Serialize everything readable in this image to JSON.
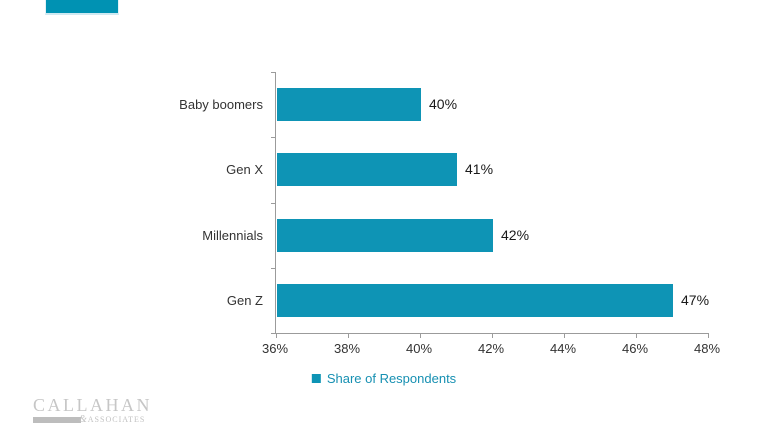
{
  "header": {
    "accent_color": "#0092b3"
  },
  "chart_data": {
    "type": "bar",
    "orientation": "horizontal",
    "title": "",
    "categories": [
      "Baby boomers",
      "Gen X",
      "Millennials",
      "Gen Z"
    ],
    "values": [
      40,
      41,
      42,
      47
    ],
    "value_labels": [
      "40%",
      "41%",
      "42%",
      "47%"
    ],
    "x_ticks": [
      36,
      38,
      40,
      42,
      44,
      46,
      48
    ],
    "x_tick_labels": [
      "36%",
      "38%",
      "40%",
      "42%",
      "44%",
      "46%",
      "48%"
    ],
    "xlim": [
      36,
      48
    ],
    "grid": false,
    "bar_color": "#0e94b5",
    "axis_color": "#9b9b9b",
    "legend": {
      "label": "Share of Respondents",
      "swatch_color": "#0e94b5",
      "text_color": "#1790b2",
      "position": "bottom-center"
    }
  },
  "footer": {
    "logo_line1": "CALLAHAN",
    "logo_amp": "&",
    "logo_line2": "ASSOCIATES"
  }
}
